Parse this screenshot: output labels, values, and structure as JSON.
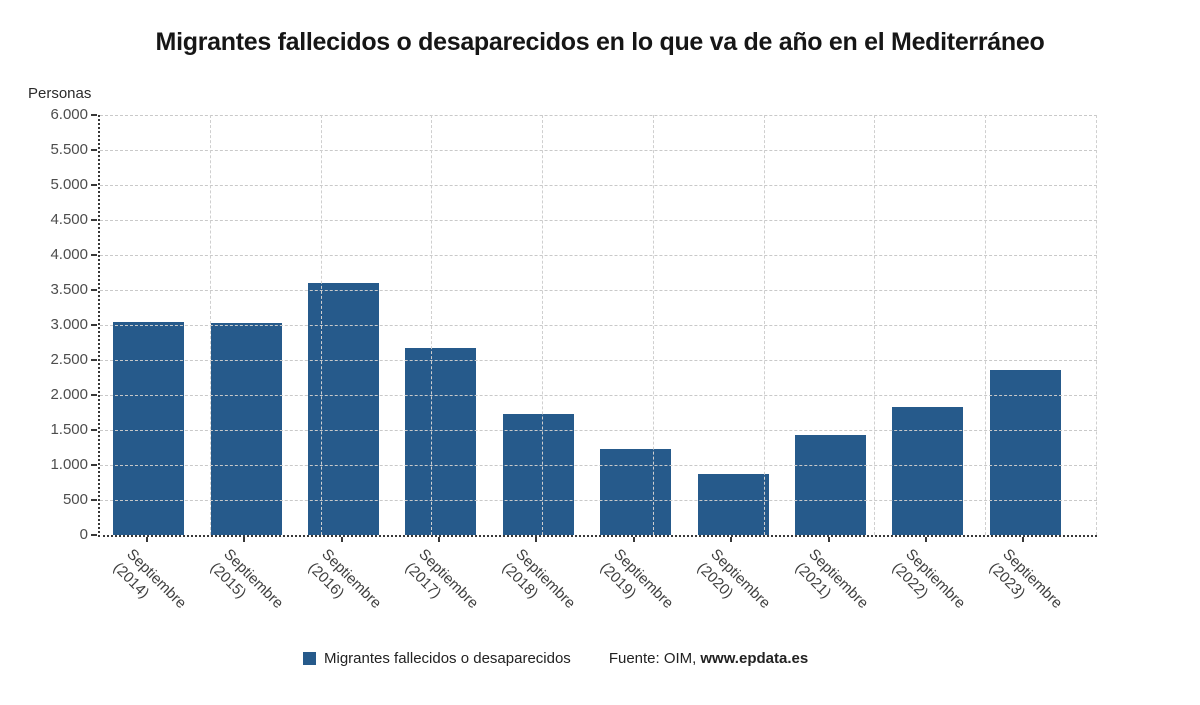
{
  "title": "Migrantes fallecidos o desaparecidos en lo que va de año en el Mediterráneo",
  "y_axis_title": "Personas",
  "legend": {
    "series_label": "Migrantes fallecidos o desaparecidos",
    "source_label": "Fuente: OIM,",
    "source_site": "www.epdata.es"
  },
  "colors": {
    "bar": "#265a8b",
    "h_grid": "#c9c9c9",
    "v_grid": "#cfcfcf",
    "axis": "#383838",
    "tick_text": "#4d4d4d"
  },
  "chart_data": {
    "type": "bar",
    "title": "Migrantes fallecidos o desaparecidos en lo que va de año en el Mediterráneo",
    "xlabel": "",
    "ylabel": "Personas",
    "categories": [
      "Septiembre (2014)",
      "Septiembre (2015)",
      "Septiembre (2016)",
      "Septiembre (2017)",
      "Septiembre (2018)",
      "Septiembre (2019)",
      "Septiembre (2020)",
      "Septiembre (2021)",
      "Septiembre (2022)",
      "Septiembre (2023)"
    ],
    "values": [
      3040,
      3025,
      3605,
      2670,
      1730,
      1235,
      875,
      1435,
      1830,
      2355
    ],
    "series": [
      {
        "name": "Migrantes fallecidos o desaparecidos",
        "values": [
          3040,
          3025,
          3605,
          2670,
          1730,
          1235,
          875,
          1435,
          1830,
          2355
        ]
      }
    ],
    "ylim": [
      0,
      6000
    ],
    "ytick_step": 500,
    "y_tick_labels": [
      "0",
      "500",
      "1.000",
      "1.500",
      "2.000",
      "2.500",
      "3.000",
      "3.500",
      "4.000",
      "4.500",
      "5.000",
      "5.500",
      "6.000"
    ],
    "grid": true,
    "x_label_rotation_deg": 45,
    "legend_position": "bottom",
    "source": "Fuente: OIM, www.epdata.es"
  }
}
